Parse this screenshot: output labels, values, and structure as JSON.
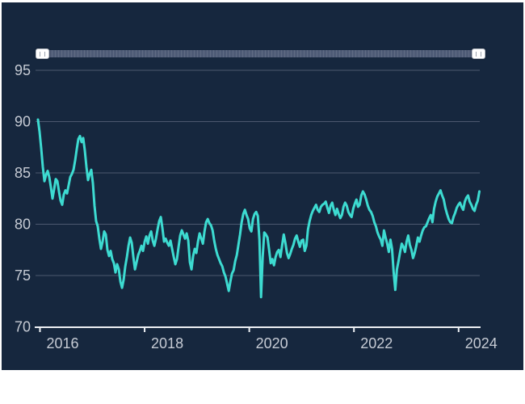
{
  "ui": {
    "navigator": {
      "type": "range-slider",
      "selected_range": "full",
      "handles": [
        "left",
        "right"
      ]
    }
  },
  "colors": {
    "page_bg": "#ffffff",
    "panel_bg": "#16273E",
    "gridline": "#4C586F",
    "axis": "#EDF0F4",
    "tick_label": "#C6CBD4",
    "line": "#3DDBD1",
    "slider_track": "#4E5B76",
    "handle_bg": "#FFFFFF",
    "handle_grip": "#9CA3AF"
  },
  "chart_data": {
    "type": "line",
    "title": "",
    "xlabel": "",
    "ylabel": "",
    "legend": "none",
    "grid": "horizontal",
    "x_ticks": [
      "2016",
      "2018",
      "2020",
      "2022",
      "2024"
    ],
    "y_ticks": [
      "95",
      "90",
      "85",
      "80",
      "75",
      "70"
    ],
    "xlim": [
      2015.9,
      2024.42
    ],
    "ylim": [
      70,
      96.3
    ],
    "x_start": 2015.961,
    "x_step": 0.0309,
    "values": [
      90.2,
      89.0,
      87.4,
      85.6,
      84.2,
      84.8,
      85.2,
      84.6,
      83.6,
      82.5,
      83.4,
      84.4,
      84.2,
      83.2,
      82.3,
      81.9,
      82.9,
      83.3,
      83.0,
      83.8,
      84.6,
      84.9,
      85.3,
      86.2,
      87.3,
      88.3,
      88.6,
      88.0,
      88.4,
      87.2,
      85.6,
      84.3,
      84.9,
      85.3,
      84.0,
      81.8,
      80.3,
      79.8,
      78.6,
      77.6,
      78.3,
      79.3,
      79.0,
      77.5,
      76.9,
      77.4,
      76.6,
      76.2,
      75.3,
      76.1,
      75.6,
      74.4,
      73.8,
      74.6,
      75.9,
      76.8,
      77.9,
      78.7,
      78.2,
      76.8,
      75.6,
      76.3,
      77.0,
      77.4,
      77.9,
      77.4,
      78.3,
      78.8,
      78.1,
      78.9,
      79.3,
      78.4,
      77.9,
      78.6,
      79.5,
      80.3,
      80.7,
      79.6,
      78.3,
      78.6,
      78.2,
      77.9,
      78.4,
      77.6,
      76.8,
      76.1,
      76.6,
      77.8,
      78.9,
      79.4,
      79.0,
      78.6,
      79.1,
      78.4,
      76.3,
      75.6,
      76.9,
      77.6,
      77.2,
      78.3,
      79.1,
      78.6,
      78.1,
      79.3,
      80.2,
      80.5,
      80.1,
      79.9,
      79.4,
      78.4,
      77.6,
      77.0,
      76.6,
      76.2,
      75.9,
      75.3,
      74.9,
      74.2,
      73.5,
      74.4,
      75.2,
      75.5,
      76.4,
      77.0,
      78.0,
      79.0,
      80.2,
      81.0,
      81.4,
      80.9,
      80.5,
      79.6,
      79.3,
      80.5,
      81.0,
      81.2,
      80.8,
      78.5,
      72.9,
      76.8,
      79.2,
      79.0,
      78.7,
      77.5,
      76.2,
      76.6,
      76.0,
      76.8,
      77.3,
      77.5,
      76.8,
      77.9,
      79.0,
      78.2,
      77.2,
      76.7,
      77.1,
      77.6,
      78.0,
      78.6,
      78.9,
      78.3,
      77.8,
      78.4,
      78.5,
      77.4,
      77.9,
      79.5,
      80.3,
      80.9,
      81.3,
      81.6,
      81.9,
      81.4,
      81.2,
      81.7,
      81.9,
      82.0,
      82.2,
      81.6,
      81.1,
      81.8,
      82.1,
      81.4,
      80.9,
      81.5,
      81.0,
      80.6,
      80.9,
      81.7,
      82.1,
      81.8,
      81.2,
      80.9,
      80.7,
      81.5,
      82.0,
      82.4,
      81.7,
      81.9,
      82.8,
      83.2,
      82.9,
      82.4,
      81.8,
      81.4,
      81.2,
      80.8,
      80.2,
      79.8,
      79.2,
      78.8,
      78.5,
      77.9,
      79.4,
      78.7,
      78.1,
      77.3,
      78.5,
      77.6,
      75.3,
      73.6,
      75.6,
      76.4,
      77.3,
      78.1,
      77.8,
      77.3,
      78.3,
      78.9,
      78.0,
      77.5,
      76.7,
      77.2,
      77.9,
      78.7,
      78.3,
      78.9,
      79.4,
      79.7,
      79.8,
      80.2,
      80.6,
      80.9,
      80.2,
      81.5,
      82.2,
      82.7,
      83.0,
      83.3,
      82.8,
      82.4,
      81.6,
      81.0,
      80.5,
      80.2,
      80.1,
      80.7,
      81.1,
      81.6,
      81.9,
      82.1,
      81.7,
      81.4,
      82.2,
      82.6,
      82.8,
      82.2,
      81.9,
      81.5,
      81.3,
      81.9,
      82.3,
      83.2
    ]
  }
}
